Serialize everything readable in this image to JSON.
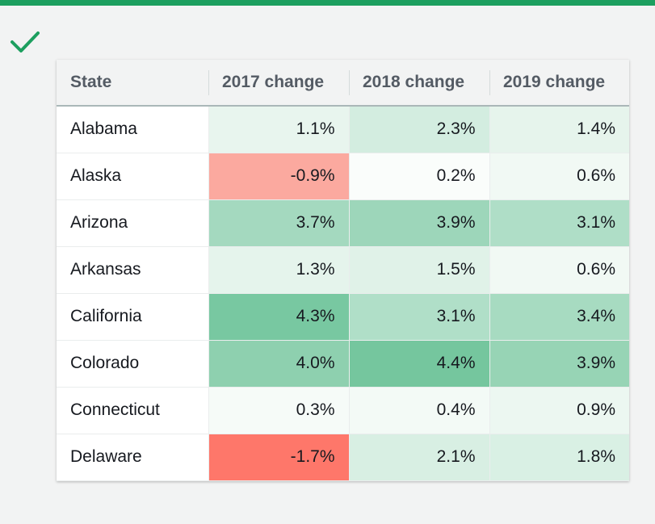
{
  "header": {
    "columns": [
      "State",
      "2017 change",
      "2018 change",
      "2019 change"
    ]
  },
  "rows": [
    {
      "state": "Alabama",
      "values": [
        "1.1%",
        "2.3%",
        "1.4%"
      ],
      "colors": [
        "#e8f5ee",
        "#d3ede0",
        "#e6f4ec"
      ]
    },
    {
      "state": "Alaska",
      "values": [
        "-0.9%",
        "0.2%",
        "0.6%"
      ],
      "colors": [
        "#fba99f",
        "#fafdfb",
        "#f1f9f4"
      ]
    },
    {
      "state": "Arizona",
      "values": [
        "3.7%",
        "3.9%",
        "3.1%"
      ],
      "colors": [
        "#a4d9bf",
        "#9dd6ba",
        "#afdec7"
      ]
    },
    {
      "state": "Arkansas",
      "values": [
        "1.3%",
        "1.5%",
        "0.6%"
      ],
      "colors": [
        "#e5f4ec",
        "#e0f2e8",
        "#f1f9f4"
      ]
    },
    {
      "state": "California",
      "values": [
        "4.3%",
        "3.1%",
        "3.4%"
      ],
      "colors": [
        "#78c8a1",
        "#b0dfc8",
        "#a7dbc1"
      ]
    },
    {
      "state": "Colorado",
      "values": [
        "4.0%",
        "4.4%",
        "3.9%"
      ],
      "colors": [
        "#8ed0af",
        "#75c69e",
        "#97d4b5"
      ]
    },
    {
      "state": "Connecticut",
      "values": [
        "0.3%",
        "0.4%",
        "0.9%"
      ],
      "colors": [
        "#f6fbf8",
        "#f3faf6",
        "#ecf7f1"
      ]
    },
    {
      "state": "Delaware",
      "values": [
        "-1.7%",
        "2.1%",
        "1.8%"
      ],
      "colors": [
        "#fe776a",
        "#d8efe3",
        "#d9f0e4"
      ]
    }
  ],
  "colors": {
    "top_bar": "#1d9f5f",
    "check": "#1d9f5f"
  },
  "icons": {
    "status": "checkmark-icon"
  }
}
